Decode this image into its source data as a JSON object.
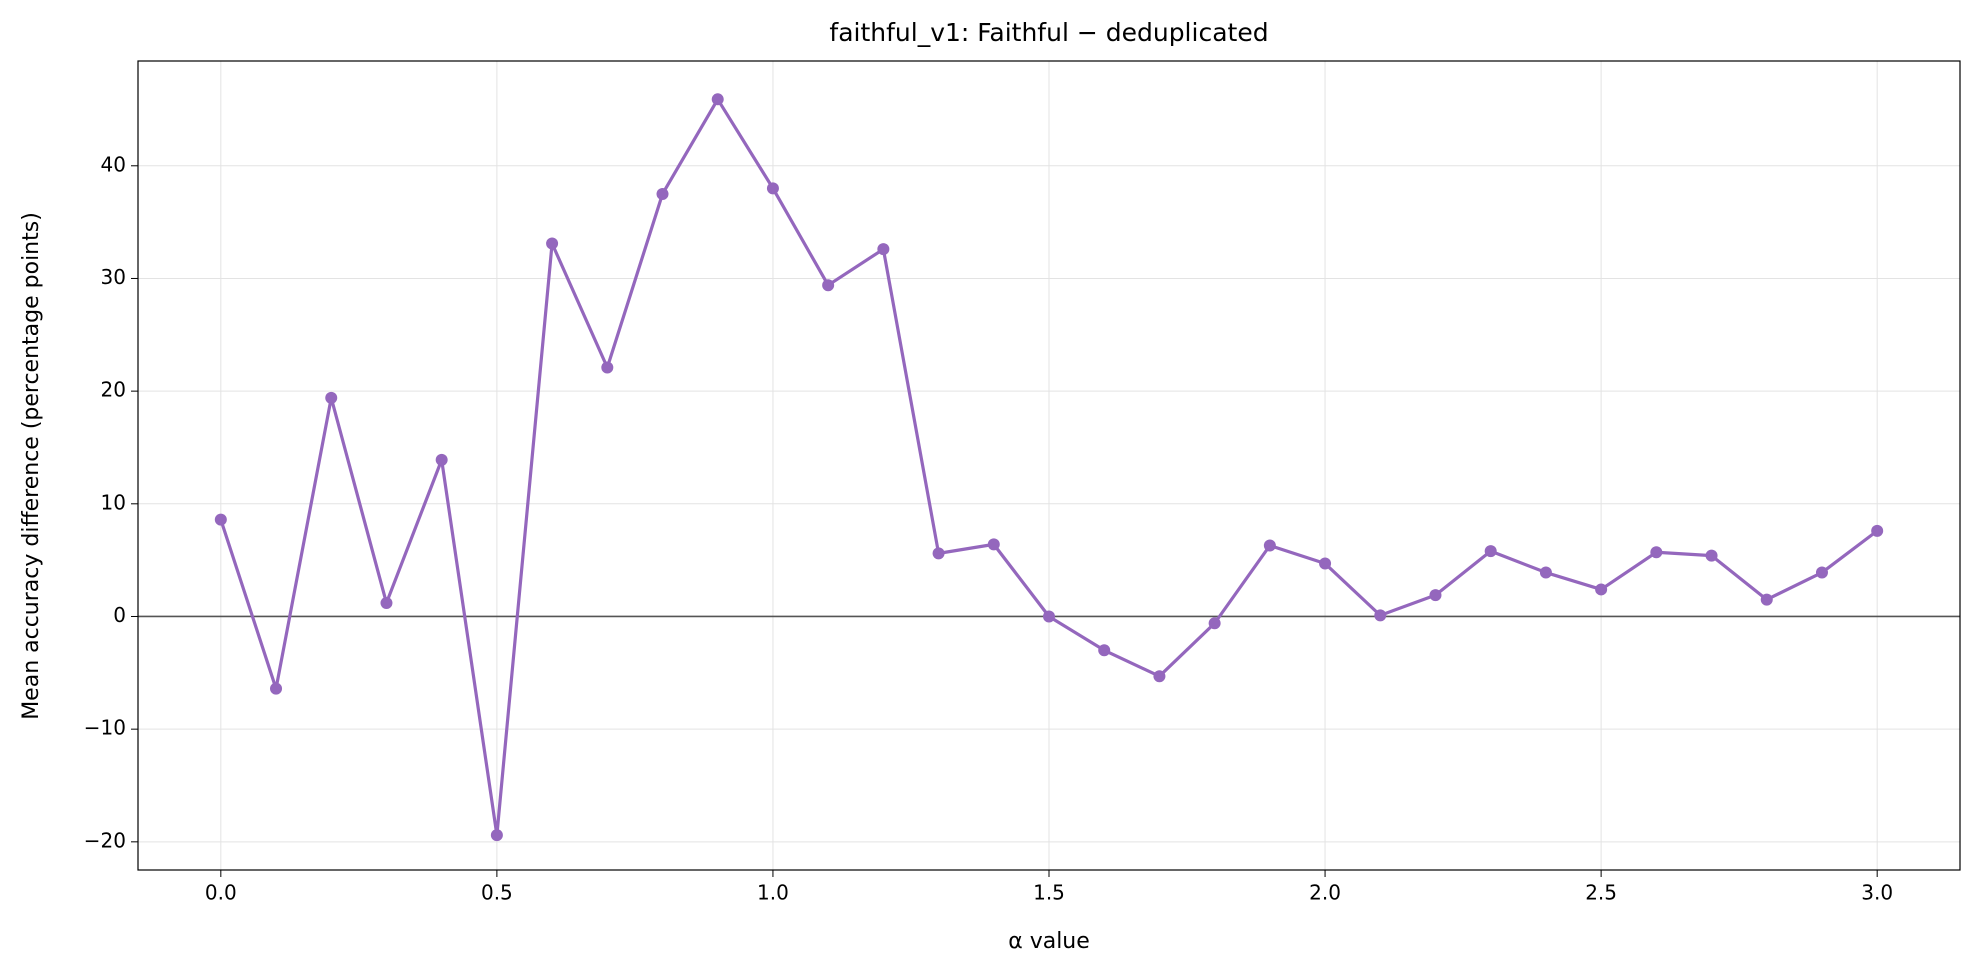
{
  "chart_data": {
    "type": "line",
    "title": "faithful_v1: Faithful − deduplicated",
    "xlabel": "α value",
    "ylabel": "Mean accuracy difference (percentage points)",
    "x": [
      0.0,
      0.1,
      0.2,
      0.3,
      0.4,
      0.5,
      0.6,
      0.7,
      0.8,
      0.9,
      1.0,
      1.1,
      1.2,
      1.3,
      1.4,
      1.5,
      1.6,
      1.7,
      1.8,
      1.9,
      2.0,
      2.1,
      2.2,
      2.3,
      2.4,
      2.5,
      2.6,
      2.7,
      2.8,
      2.9,
      3.0
    ],
    "series": [
      {
        "name": "faithful_v1",
        "color": "#9467bd",
        "values": [
          8.6,
          -6.4,
          19.4,
          1.2,
          13.9,
          -19.4,
          33.1,
          22.1,
          37.5,
          45.9,
          38.0,
          29.4,
          32.6,
          5.6,
          6.4,
          0,
          -3.0,
          -5.3,
          -0.6,
          6.3,
          4.7,
          0.1,
          1.9,
          5.8,
          3.9,
          2.4,
          5.7,
          5.4,
          1.5,
          3.9,
          7.6
        ]
      }
    ],
    "xlim": [
      -0.15,
      3.15
    ],
    "ylim": [
      -22.5,
      49.3
    ],
    "xticks": [
      {
        "value": 0,
        "label": "0.0"
      },
      {
        "value": 0.5,
        "label": "0.5"
      },
      {
        "value": 1,
        "label": "1.0"
      },
      {
        "value": 1.5,
        "label": "1.5"
      },
      {
        "value": 2,
        "label": "2.0"
      },
      {
        "value": 2.5,
        "label": "2.5"
      },
      {
        "value": 3,
        "label": "3.0"
      }
    ],
    "yticks": [
      {
        "value": -20,
        "label": "−20"
      },
      {
        "value": -10,
        "label": "−10"
      },
      0,
      10,
      20,
      30,
      40
    ],
    "grid": true,
    "axhline": 0
  }
}
